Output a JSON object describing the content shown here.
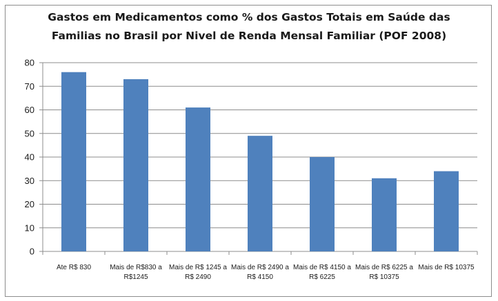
{
  "chart_data": {
    "type": "bar",
    "title_line1": "Gastos em Medicamentos como % dos Gastos Totais em Saúde das",
    "title_line2": "Familias no Brasil por Nivel de Renda Mensal Familiar (POF 2008)",
    "categories": [
      [
        "Ate R$ 830"
      ],
      [
        "Mais de R$830 a",
        "R$1245"
      ],
      [
        "Mais de R$ 1245 a",
        "R$ 2490"
      ],
      [
        "Mais de R$ 2490 a",
        "R$ 4150"
      ],
      [
        "Mais de R$ 4150 a",
        "R$ 6225"
      ],
      [
        "Mais de R$ 6225 a",
        "R$ 10375"
      ],
      [
        "Mais de R$ 10375"
      ]
    ],
    "values": [
      76,
      73,
      61,
      49,
      40,
      31,
      34
    ],
    "ylim": [
      0,
      80
    ],
    "yticks": [
      0,
      10,
      20,
      30,
      40,
      50,
      60,
      70,
      80
    ],
    "grid": true,
    "legend": "none",
    "bar_color": "#4f81bd"
  }
}
